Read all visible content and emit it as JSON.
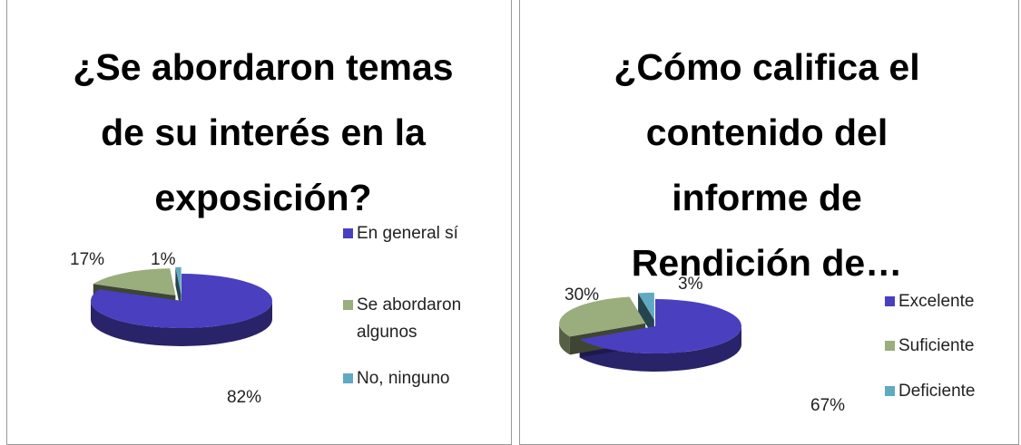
{
  "chart_data": [
    {
      "type": "pie",
      "title": "¿Se abordaron temas de su interés en la exposición?",
      "categories": [
        "En general sí",
        "Se abordaron algunos",
        "No, ninguno"
      ],
      "values": [
        82,
        17,
        1
      ],
      "value_labels": [
        "82%",
        "17%",
        "1%"
      ],
      "colors": [
        "#4a3fbf",
        "#9aad7c",
        "#5fa9c2"
      ],
      "legend": "right"
    },
    {
      "type": "pie",
      "title": "¿Cómo califica el contenido del informe de Rendición de…",
      "categories": [
        "Excelente",
        "Suficiente",
        "Deficiente"
      ],
      "values": [
        67,
        30,
        3
      ],
      "value_labels": [
        "67%",
        "30%",
        "3%"
      ],
      "colors": [
        "#4a3fbf",
        "#9aad7c",
        "#5fa9c2"
      ],
      "legend": "right"
    }
  ]
}
